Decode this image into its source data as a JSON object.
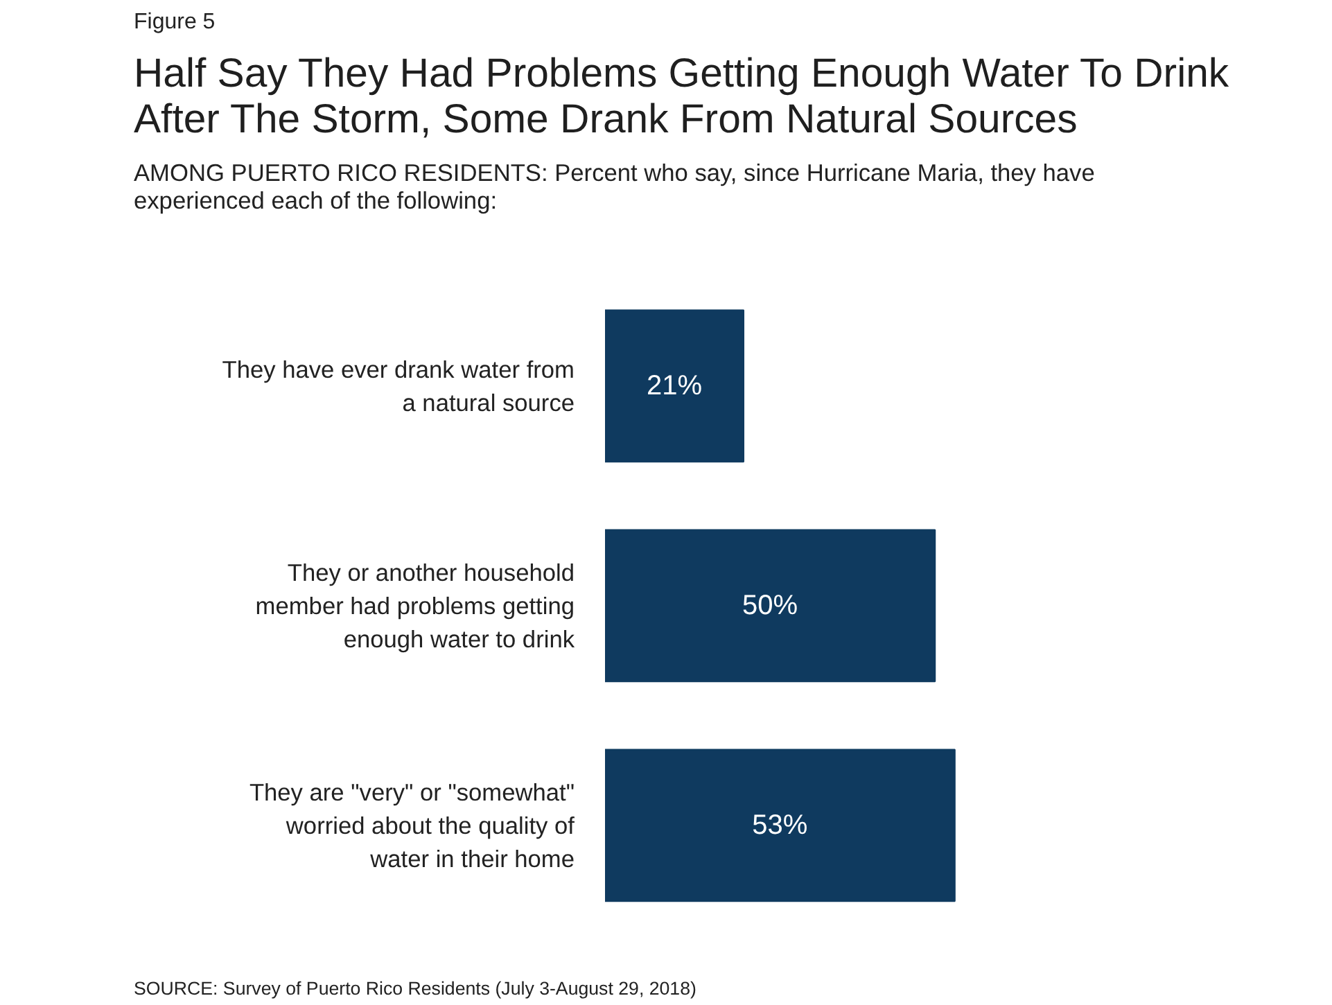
{
  "chart_data": {
    "type": "bar",
    "orientation": "horizontal",
    "title": "Half Say They Had Problems Getting Enough Water To Drink After The Storm, Some Drank From Natural Sources",
    "subtitle": "AMONG PUERTO RICO RESIDENTS: Percent who say, since Hurricane Maria, they have experienced each of the following:",
    "categories": [
      "They have ever drank water from a natural source",
      "They or another household member had problems getting enough water to drink",
      "They are \"very\" or \"somewhat\" worried about the quality of water in their home"
    ],
    "values": [
      21,
      50,
      53
    ],
    "color": "#0f3a5f",
    "data_labels": true,
    "value_labels": [
      "21%",
      "50%",
      "53%"
    ],
    "annotations": [
      "Figure 5",
      "SOURCE: Survey of Puerto Rico Residents (July 3-August 29, 2018)"
    ],
    "grid": false
  }
}
